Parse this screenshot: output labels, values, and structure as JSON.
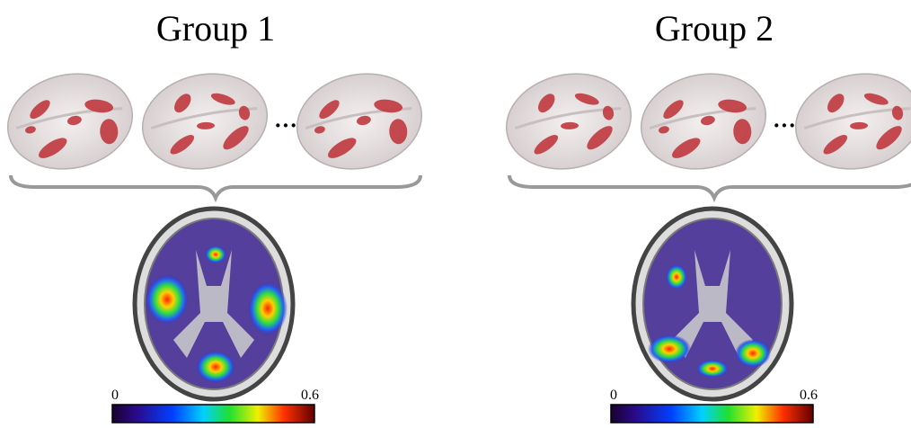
{
  "groups": [
    {
      "title": "Group 1",
      "ellipsis": "···",
      "colorbar": {
        "min": 0,
        "max": 0.6
      }
    },
    {
      "title": "Group 2",
      "ellipsis": "···",
      "colorbar": {
        "min": 0,
        "max": 0.6
      }
    }
  ]
}
